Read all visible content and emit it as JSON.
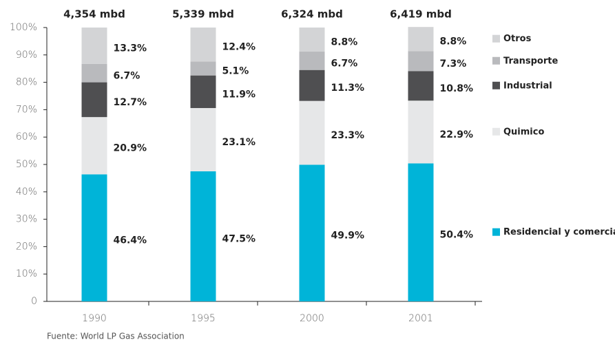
{
  "chart_data": {
    "type": "stacked_bar",
    "categories": [
      "1990",
      "1995",
      "2000",
      "2001"
    ],
    "annotations": [
      "4,354 mbd",
      "5,339 mbd",
      "6,324 mbd",
      "6,419 mbd"
    ],
    "series": [
      {
        "name": "Residencial y comercial",
        "color": "#00b4d8",
        "values": [
          46.4,
          47.5,
          49.9,
          50.4
        ],
        "value_labels": [
          "46.4%",
          "47.5%",
          "49.9%",
          "50.4%"
        ]
      },
      {
        "name": "Quimico",
        "color": "#e6e7e8",
        "values": [
          20.9,
          23.1,
          23.3,
          22.9
        ],
        "value_labels": [
          "20.9%",
          "23.1%",
          "23.3%",
          "22.9%"
        ]
      },
      {
        "name": "Industrial",
        "color": "#4f4f51",
        "values": [
          12.7,
          11.9,
          11.3,
          10.8
        ],
        "value_labels": [
          "12.7%",
          "11.9%",
          "11.3%",
          "10.8%"
        ]
      },
      {
        "name": "Transporte",
        "color": "#b9babd",
        "values": [
          6.7,
          5.1,
          6.7,
          7.3
        ],
        "value_labels": [
          "6.7%",
          "5.1%",
          "6.7%",
          "7.3%"
        ]
      },
      {
        "name": "Otros",
        "color": "#d3d4d6",
        "values": [
          13.3,
          12.4,
          8.8,
          8.8
        ],
        "value_labels": [
          "13.3%",
          "12.4%",
          "8.8%",
          "8.8%"
        ]
      }
    ],
    "ylim": [
      0,
      100
    ],
    "yticks": [
      {
        "value": 0,
        "label": "0"
      },
      {
        "value": 10,
        "label": "10%"
      },
      {
        "value": 20,
        "label": "20%"
      },
      {
        "value": 30,
        "label": "30%"
      },
      {
        "value": 40,
        "label": "40%"
      },
      {
        "value": 50,
        "label": "50%"
      },
      {
        "value": 60,
        "label": "60%"
      },
      {
        "value": 70,
        "label": "70%"
      },
      {
        "value": 80,
        "label": "80%"
      },
      {
        "value": 90,
        "label": "90%"
      },
      {
        "value": 100,
        "label": "100%"
      }
    ],
    "source": "Fuente: World LP Gas Association"
  }
}
